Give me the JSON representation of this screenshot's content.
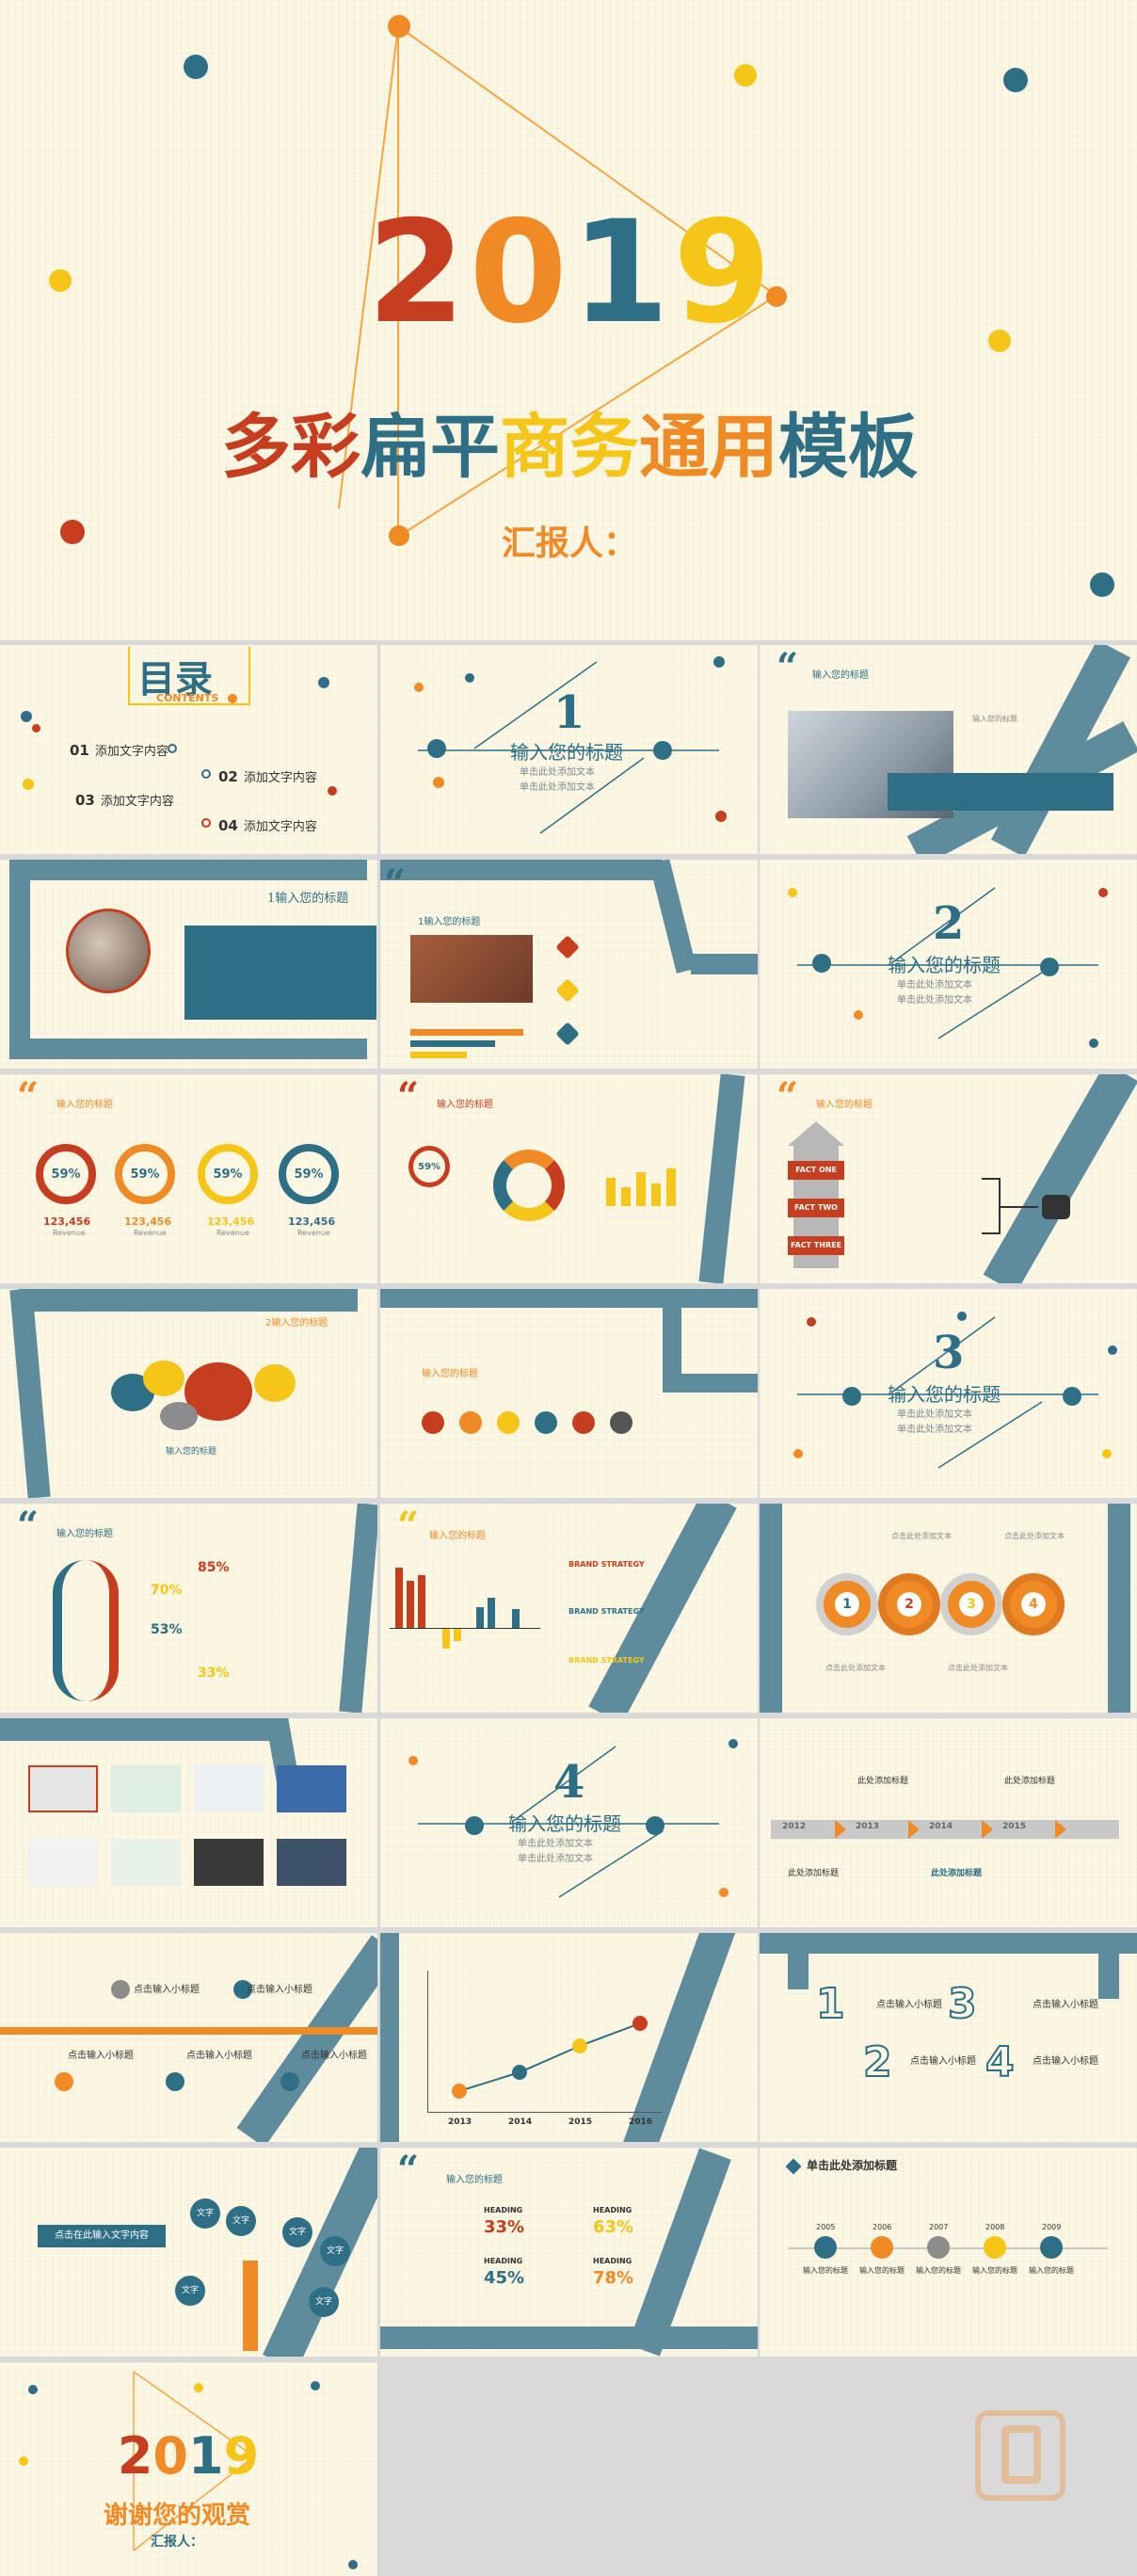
{
  "cover": {
    "year": "2019",
    "title_parts": [
      "多彩",
      "扁平",
      "商务",
      "通用",
      "模板"
    ],
    "reporter": "汇报人："
  },
  "toc": {
    "heading": "目录",
    "sub": "CONTENTS",
    "items": [
      {
        "num": "01",
        "text": "添加文字内容"
      },
      {
        "num": "02",
        "text": "添加文字内容"
      },
      {
        "num": "03",
        "text": "添加文字内容"
      },
      {
        "num": "04",
        "text": "添加文字内容"
      }
    ]
  },
  "section_title": "输入您的标题",
  "section_line1": "单击此处添加文本",
  "section_line2": "单击此处添加文本",
  "sections": [
    "1",
    "2",
    "3",
    "4"
  ],
  "slide_title": "输入您的标题",
  "numbered_title": "1输入您的标题",
  "numbered_title2": "2输入您的标题",
  "percent": "59%",
  "stat": "123,456",
  "stat_label": "Revenue",
  "fact_one": "FACT ONE",
  "fact_two": "FACT TWO",
  "fact_three": "FACT THREE",
  "dna_pcts": [
    "85%",
    "70%",
    "53%",
    "33%"
  ],
  "brand": "BRAND STRATEGY",
  "timeline_years": [
    "2012",
    "2013",
    "2014",
    "2015"
  ],
  "timeline_label": "此处添加标题",
  "road_label": "点击输入小标题",
  "road_text": "点击此处添加文本",
  "line_years": [
    "2013",
    "2014",
    "2015",
    "2016"
  ],
  "stair_nums": [
    "1",
    "2",
    "3",
    "4"
  ],
  "tree_title": "点击在此输入文字内容",
  "tree_word": "文字",
  "heading": "HEADING",
  "heading_pcts": [
    "33%",
    "63%",
    "45%",
    "78%"
  ],
  "process_title": "单击此处添加标题",
  "process_years": [
    "2005",
    "2006",
    "2007",
    "2008",
    "2009"
  ],
  "process_label": "输入您的标题",
  "thanks": {
    "year": "2019",
    "text": "谢谢您的观赏",
    "reporter": "汇报人："
  },
  "colors": {
    "red": "#c63d1f",
    "orange": "#f08a24",
    "yellow": "#f5c518",
    "teal": "#2f6f86",
    "ribbon": "#5f8c9c",
    "bg": "#fcf7e3"
  }
}
